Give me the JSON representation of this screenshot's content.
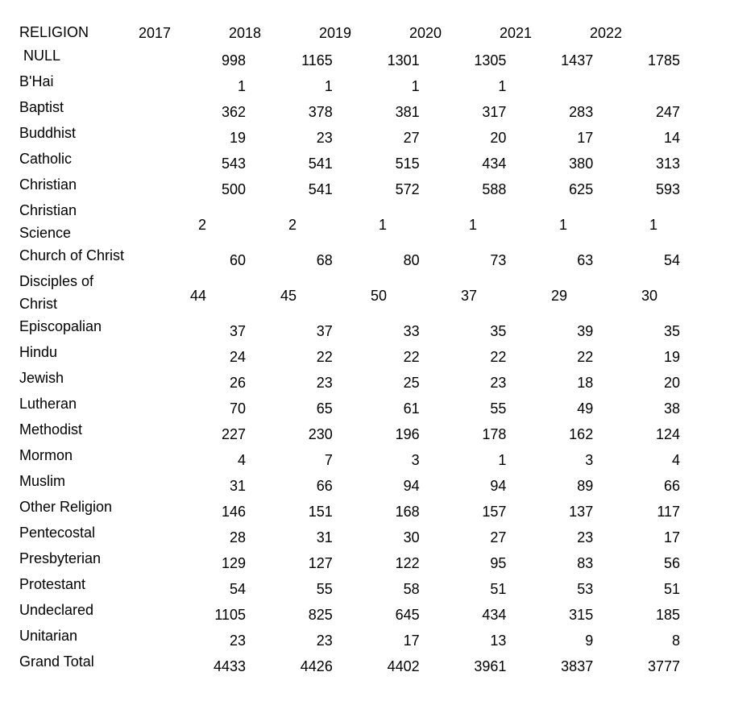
{
  "header": {
    "label": "RELIGION",
    "years": [
      "2017",
      "2018",
      "2019",
      "2020",
      "2021",
      "2022"
    ]
  },
  "rows": [
    {
      "label": " NULL",
      "values": [
        "998",
        "1165",
        "1301",
        "1305",
        "1437",
        "1785"
      ]
    },
    {
      "label": "B'Hai",
      "values": [
        "1",
        "1",
        "1",
        "1",
        "",
        ""
      ]
    },
    {
      "label": "Baptist",
      "values": [
        "362",
        "378",
        "381",
        "317",
        "283",
        "247"
      ]
    },
    {
      "label": "Buddhist",
      "values": [
        "19",
        "23",
        "27",
        "20",
        "17",
        "14"
      ]
    },
    {
      "label": "Catholic",
      "values": [
        "543",
        "541",
        "515",
        "434",
        "380",
        "313"
      ]
    },
    {
      "label": "Christian",
      "values": [
        "500",
        "541",
        "572",
        "588",
        "625",
        "593"
      ]
    },
    {
      "label": "Christian Science",
      "values": [
        "2",
        "2",
        "1",
        "1",
        "1",
        "1"
      ]
    },
    {
      "label": "Church of Christ",
      "values": [
        "60",
        "68",
        "80",
        "73",
        "63",
        "54"
      ]
    },
    {
      "label": "Disciples of Christ",
      "values": [
        "44",
        "45",
        "50",
        "37",
        "29",
        "30"
      ]
    },
    {
      "label": "Episcopalian",
      "values": [
        "37",
        "37",
        "33",
        "35",
        "39",
        "35"
      ]
    },
    {
      "label": "Hindu",
      "values": [
        "24",
        "22",
        "22",
        "22",
        "22",
        "19"
      ]
    },
    {
      "label": "Jewish",
      "values": [
        "26",
        "23",
        "25",
        "23",
        "18",
        "20"
      ]
    },
    {
      "label": "Lutheran",
      "values": [
        "70",
        "65",
        "61",
        "55",
        "49",
        "38"
      ]
    },
    {
      "label": "Methodist",
      "values": [
        "227",
        "230",
        "196",
        "178",
        "162",
        "124"
      ]
    },
    {
      "label": "Mormon",
      "values": [
        "4",
        "7",
        "3",
        "1",
        "3",
        "4"
      ]
    },
    {
      "label": "Muslim",
      "values": [
        "31",
        "66",
        "94",
        "94",
        "89",
        "66"
      ]
    },
    {
      "label": "Other Religion",
      "values": [
        "146",
        "151",
        "168",
        "157",
        "137",
        "117"
      ]
    },
    {
      "label": "Pentecostal",
      "values": [
        "28",
        "31",
        "30",
        "27",
        "23",
        "17"
      ]
    },
    {
      "label": "Presbyterian",
      "values": [
        "129",
        "127",
        "122",
        "95",
        "83",
        "56"
      ]
    },
    {
      "label": "Protestant",
      "values": [
        "54",
        "55",
        "58",
        "51",
        "53",
        "51"
      ]
    },
    {
      "label": "Undeclared",
      "values": [
        "1105",
        "825",
        "645",
        "434",
        "315",
        "185"
      ]
    },
    {
      "label": "Unitarian",
      "values": [
        "23",
        "23",
        "17",
        "13",
        "9",
        "8"
      ]
    },
    {
      "label": "Grand Total",
      "values": [
        "4433",
        "4426",
        "4402",
        "3961",
        "3837",
        "3777"
      ]
    }
  ]
}
